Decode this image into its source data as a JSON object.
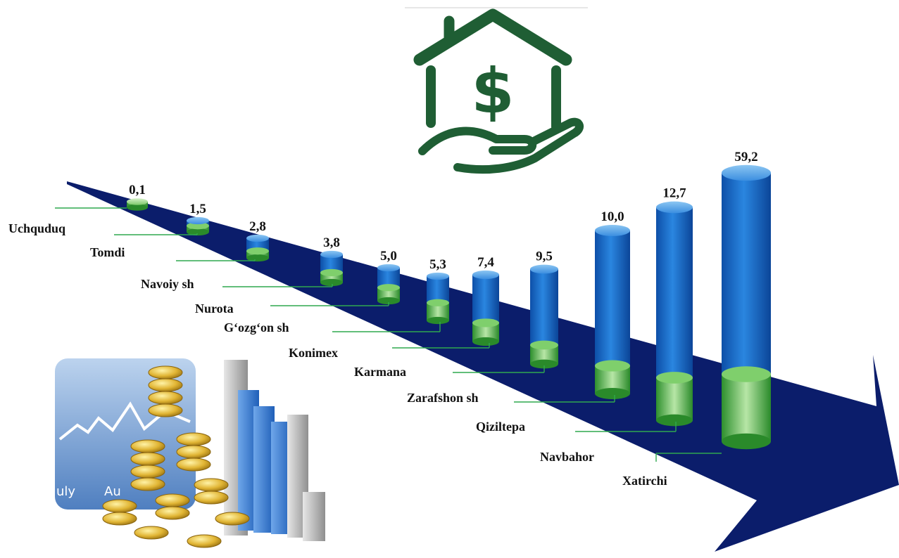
{
  "colors": {
    "arrow": "#0b1d6b",
    "cylinder_top": "#1e73cf",
    "cylinder_bottom": "#3fae3f",
    "leader_line": "#2fa84f",
    "icon_green": "#1f5e34"
  },
  "icons": {
    "top_center": "house-dollar-hand-icon",
    "bottom_left": "finance-chart-coins-icon"
  },
  "chart_data": {
    "type": "bar",
    "title": "",
    "xlabel": "",
    "ylabel": "",
    "categories": [
      "Uchquduq",
      "Tomdi",
      "Navoiy sh",
      "Nurota",
      "G‘ozg‘on sh",
      "Konimex",
      "Karmana",
      "Zarafshon sh",
      "Qiziltepa",
      "Navbahor",
      "Xatirchi"
    ],
    "values": [
      0.1,
      1.5,
      2.8,
      3.8,
      5.0,
      5.3,
      7.4,
      9.5,
      10.0,
      12.7,
      59.2
    ],
    "value_labels": [
      "0,1",
      "1,5",
      "2,8",
      "3,8",
      "5,0",
      "5,3",
      "7,4",
      "9,5",
      "10,0",
      "12,7",
      "59,2"
    ],
    "grid": false,
    "legend": "none"
  }
}
